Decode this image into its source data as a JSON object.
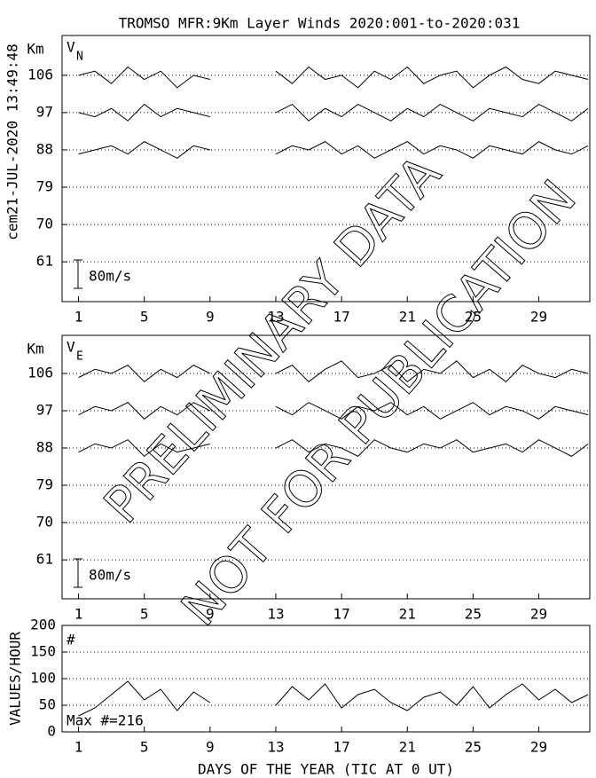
{
  "title": "TROMSO MFR:9Km Layer Winds 2020:001-to-2020:031",
  "timestamp": "cem21-JUL-2020 13:49:48",
  "watermark": [
    "PRELIMINARY DATA",
    "NOT FOR PUBLICATION"
  ],
  "chart_data": [
    {
      "type": "line",
      "ylabel": "Km",
      "component_label": "V",
      "component_subscript": "N",
      "scale_label": "80m/s",
      "xlim": [
        0,
        32.1
      ],
      "ylim": [
        51.4,
        115.6
      ],
      "yticks": [
        106,
        97,
        88,
        79,
        70,
        61
      ],
      "xticks": [
        1,
        5,
        9,
        13,
        17,
        21,
        25,
        29
      ],
      "grid": true,
      "x": [
        1,
        2,
        3,
        4,
        5,
        6,
        7,
        8,
        9,
        10,
        11,
        12,
        13,
        14,
        15,
        16,
        17,
        18,
        19,
        20,
        21,
        22,
        23,
        24,
        25,
        26,
        27,
        28,
        29,
        30,
        31,
        32
      ],
      "series": [
        {
          "color": "#000000",
          "values": [
            106,
            107,
            104,
            108,
            105,
            107,
            103,
            106,
            105,
            null,
            null,
            null,
            107,
            104,
            108,
            105,
            106,
            103,
            107,
            105,
            108,
            104,
            106,
            107,
            103,
            106,
            108,
            105,
            104,
            107,
            106,
            105
          ]
        },
        {
          "color": "#000000",
          "values": [
            97,
            96,
            98,
            95,
            99,
            96,
            98,
            97,
            96,
            null,
            null,
            null,
            97,
            99,
            95,
            98,
            96,
            99,
            97,
            95,
            98,
            96,
            99,
            97,
            95,
            98,
            97,
            96,
            99,
            97,
            95,
            98
          ]
        },
        {
          "color": "#000000",
          "values": [
            87,
            88,
            89,
            87,
            90,
            88,
            86,
            89,
            88,
            null,
            null,
            null,
            87,
            89,
            88,
            90,
            87,
            89,
            86,
            88,
            90,
            87,
            89,
            88,
            86,
            89,
            88,
            87,
            90,
            88,
            87,
            89
          ]
        }
      ]
    },
    {
      "type": "line",
      "ylabel": "Km",
      "component_label": "V",
      "component_subscript": "E",
      "scale_label": "80m/s",
      "xlim": [
        0,
        32.1
      ],
      "ylim": [
        51.6,
        115.2
      ],
      "yticks": [
        106,
        97,
        88,
        79,
        70,
        61
      ],
      "xticks": [
        1,
        5,
        9,
        13,
        17,
        21,
        25,
        29
      ],
      "grid": true,
      "x": [
        1,
        2,
        3,
        4,
        5,
        6,
        7,
        8,
        9,
        10,
        11,
        12,
        13,
        14,
        15,
        16,
        17,
        18,
        19,
        20,
        21,
        22,
        23,
        24,
        25,
        26,
        27,
        28,
        29,
        30,
        31,
        32
      ],
      "series": [
        {
          "color": "#000000",
          "values": [
            105,
            107,
            106,
            108,
            104,
            107,
            105,
            108,
            106,
            null,
            null,
            null,
            106,
            108,
            104,
            107,
            109,
            105,
            106,
            108,
            104,
            107,
            106,
            109,
            105,
            107,
            104,
            108,
            106,
            105,
            107,
            106
          ]
        },
        {
          "color": "#000000",
          "values": [
            96,
            98,
            97,
            99,
            95,
            98,
            96,
            99,
            97,
            null,
            null,
            null,
            98,
            96,
            99,
            97,
            95,
            98,
            97,
            99,
            96,
            98,
            95,
            97,
            99,
            96,
            98,
            97,
            95,
            98,
            97,
            96
          ]
        },
        {
          "color": "#000000",
          "values": [
            87,
            89,
            88,
            90,
            86,
            89,
            87,
            88,
            89,
            null,
            null,
            null,
            88,
            90,
            87,
            89,
            88,
            86,
            90,
            88,
            87,
            89,
            88,
            90,
            87,
            88,
            89,
            87,
            90,
            88,
            86,
            89
          ]
        }
      ]
    },
    {
      "type": "line",
      "ylabel": "VALUES/HOUR",
      "annotations": [
        "#",
        "Max #=216"
      ],
      "xlabel": "DAYS OF THE YEAR (TIC AT 0 UT)",
      "xlim": [
        0,
        32.1
      ],
      "ylim": [
        0,
        200
      ],
      "yticks": [
        0,
        50,
        100,
        150,
        200
      ],
      "xticks": [
        1,
        5,
        9,
        13,
        17,
        21,
        25,
        29
      ],
      "grid": true,
      "x": [
        1,
        2,
        3,
        4,
        5,
        6,
        7,
        8,
        9,
        10,
        11,
        12,
        13,
        14,
        15,
        16,
        17,
        18,
        19,
        20,
        21,
        22,
        23,
        24,
        25,
        26,
        27,
        28,
        29,
        30,
        31,
        32
      ],
      "series": [
        {
          "color": "#000000",
          "values": [
            30,
            45,
            70,
            95,
            60,
            80,
            40,
            75,
            55,
            null,
            null,
            null,
            50,
            85,
            60,
            90,
            45,
            70,
            80,
            55,
            40,
            65,
            75,
            50,
            85,
            45,
            70,
            90,
            60,
            80,
            55,
            70
          ]
        }
      ]
    }
  ]
}
